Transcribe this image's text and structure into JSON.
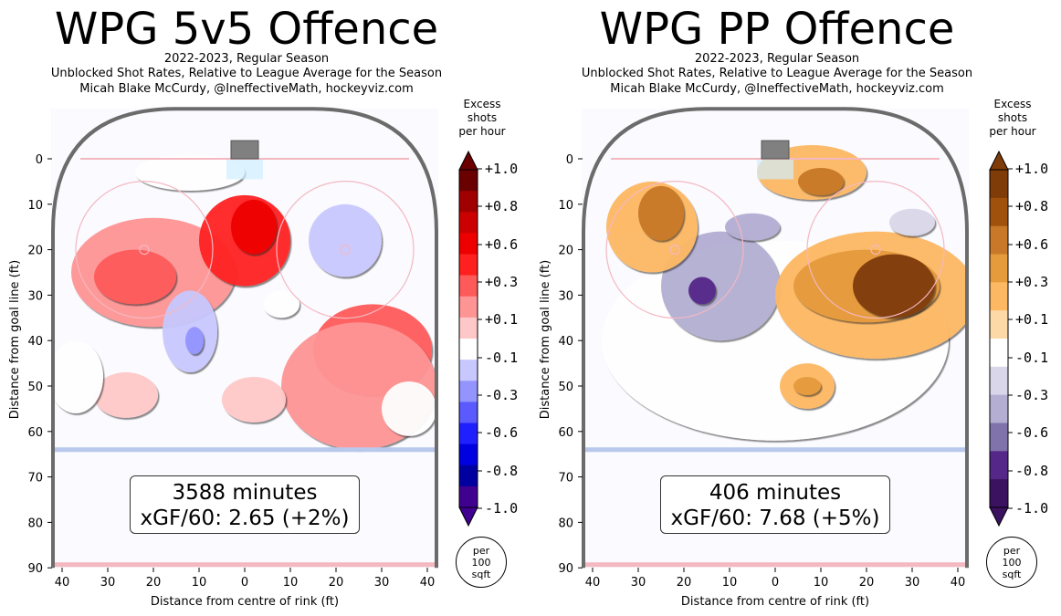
{
  "panels": [
    {
      "title": "WPG 5v5 Offence",
      "subtitle": [
        "2022-2023, Regular Season",
        "Unblocked Shot Rates, Relative to League Average for the Season",
        "Micah Blake McCurdy, @IneffectiveMath, hockeyviz.com"
      ],
      "summary": {
        "minutes": "3588 minutes",
        "xgf": "xGF/60: 2.65 (+2%)"
      },
      "colorbar_label": [
        "Excess",
        "shots",
        "per hour"
      ],
      "per_label": [
        "per",
        "100",
        "sqft"
      ]
    },
    {
      "title": "WPG PP Offence",
      "subtitle": [
        "2022-2023, Regular Season",
        "Unblocked Shot Rates, Relative to League Average for the Season",
        "Micah Blake McCurdy, @IneffectiveMath, hockeyviz.com"
      ],
      "summary": {
        "minutes": "406 minutes",
        "xgf": "xGF/60: 7.68 (+5%)"
      },
      "colorbar_label": [
        "Excess",
        "shots",
        "per hour"
      ],
      "per_label": [
        "per",
        "100",
        "sqft"
      ]
    }
  ],
  "axes": {
    "xlabel": "Distance from centre of rink (ft)",
    "ylabel": "Distance from goal line (ft)",
    "xticks": [
      "40",
      "30",
      "20",
      "10",
      "0",
      "10",
      "20",
      "30",
      "40"
    ],
    "yticks": [
      "0",
      "10",
      "20",
      "30",
      "40",
      "50",
      "60",
      "70",
      "80",
      "90"
    ]
  },
  "colorbar_ticks": [
    "+1.0",
    "+0.8",
    "+0.6",
    "+0.3",
    "+0.1",
    "-0.1",
    "-0.3",
    "-0.6",
    "-0.8",
    "-1.0"
  ],
  "colors": {
    "bwr": [
      "#6a0000",
      "#a00000",
      "#cc0000",
      "#ee0000",
      "#ff2020",
      "#ff5a5a",
      "#ff9494",
      "#ffc8c8",
      "#ffffff",
      "#c8c8ff",
      "#9494ff",
      "#5a5aff",
      "#2020ff",
      "#0000e0",
      "#0000a0",
      "#400090"
    ],
    "puor": [
      "#7f3b08",
      "#a0520c",
      "#c87828",
      "#e59a3c",
      "#fdb863",
      "#fdd9a8",
      "#ffffff",
      "#d8d6e8",
      "#b3aed2",
      "#8073ac",
      "#542788",
      "#3a1260"
    ],
    "rink_border": "#6b6b6b",
    "goal_line": "#f4b8c0",
    "blue_line": "#b8c8ec"
  },
  "chart_data": [
    {
      "type": "heatmap",
      "title": "WPG 5v5 Offence",
      "xlabel": "Distance from centre of rink (ft)",
      "ylabel": "Distance from goal line (ft)",
      "xlim": [
        -42,
        42
      ],
      "ylim": [
        90,
        -10
      ],
      "colorbar_range": [
        -1.0,
        1.0
      ],
      "regions": [
        {
          "cx": -20,
          "cy": 25,
          "rx": 18,
          "ry": 12,
          "value": 0.15
        },
        {
          "cx": -24,
          "cy": 26,
          "rx": 9,
          "ry": 6,
          "value": 0.35
        },
        {
          "cx": 0,
          "cy": 18,
          "rx": 10,
          "ry": 10,
          "value": 0.4
        },
        {
          "cx": 2,
          "cy": 15,
          "rx": 5,
          "ry": 6,
          "value": 0.6
        },
        {
          "cx": 28,
          "cy": 42,
          "rx": 13,
          "ry": 10,
          "value": 0.3
        },
        {
          "cx": 25,
          "cy": 50,
          "rx": 17,
          "ry": 14,
          "value": 0.15
        },
        {
          "cx": 2,
          "cy": 53,
          "rx": 7,
          "ry": 5,
          "value": 0.12
        },
        {
          "cx": -26,
          "cy": 52,
          "rx": 7,
          "ry": 5,
          "value": 0.12
        },
        {
          "cx": 22,
          "cy": 18,
          "rx": 8,
          "ry": 8,
          "value": -0.15
        },
        {
          "cx": -12,
          "cy": 38,
          "rx": 6,
          "ry": 9,
          "value": -0.15
        },
        {
          "cx": -11,
          "cy": 40,
          "rx": 2,
          "ry": 3,
          "value": -0.35
        },
        {
          "cx": -12,
          "cy": 3,
          "rx": 12,
          "ry": 4,
          "value": -0.12
        },
        {
          "cx": -37,
          "cy": 48,
          "rx": 6,
          "ry": 8,
          "value": -0.12
        },
        {
          "cx": 36,
          "cy": 55,
          "rx": 6,
          "ry": 6,
          "value": -0.12
        },
        {
          "cx": 8,
          "cy": 32,
          "rx": 4,
          "ry": 3,
          "value": -0.12
        }
      ]
    },
    {
      "type": "heatmap",
      "title": "WPG PP Offence",
      "xlabel": "Distance from centre of rink (ft)",
      "ylabel": "Distance from goal line (ft)",
      "xlim": [
        -42,
        42
      ],
      "ylim": [
        90,
        -10
      ],
      "colorbar_range": [
        -1.0,
        1.0
      ],
      "regions": [
        {
          "cx": 0,
          "cy": 40,
          "rx": 38,
          "ry": 22,
          "value": -0.15
        },
        {
          "cx": -12,
          "cy": 28,
          "rx": 13,
          "ry": 12,
          "value": -0.4
        },
        {
          "cx": -16,
          "cy": 29,
          "rx": 3,
          "ry": 3,
          "value": -0.7
        },
        {
          "cx": -5,
          "cy": 15,
          "rx": 6,
          "ry": 3,
          "value": -0.4
        },
        {
          "cx": 22,
          "cy": 30,
          "rx": 22,
          "ry": 14,
          "value": 0.25
        },
        {
          "cx": 20,
          "cy": 28,
          "rx": 16,
          "ry": 8,
          "value": 0.5
        },
        {
          "cx": 26,
          "cy": 28,
          "rx": 9,
          "ry": 7,
          "value": 1.0
        },
        {
          "cx": -27,
          "cy": 15,
          "rx": 10,
          "ry": 10,
          "value": 0.25
        },
        {
          "cx": -25,
          "cy": 12,
          "rx": 5,
          "ry": 6,
          "value": 0.6
        },
        {
          "cx": 8,
          "cy": 3,
          "rx": 12,
          "ry": 6,
          "value": 0.25
        },
        {
          "cx": 10,
          "cy": 5,
          "rx": 5,
          "ry": 3,
          "value": 0.6
        },
        {
          "cx": 7,
          "cy": 50,
          "rx": 6,
          "ry": 5,
          "value": 0.25
        },
        {
          "cx": 7,
          "cy": 50,
          "rx": 3,
          "ry": 2,
          "value": 0.5
        },
        {
          "cx": 30,
          "cy": 14,
          "rx": 5,
          "ry": 3,
          "value": -0.3
        }
      ]
    }
  ]
}
